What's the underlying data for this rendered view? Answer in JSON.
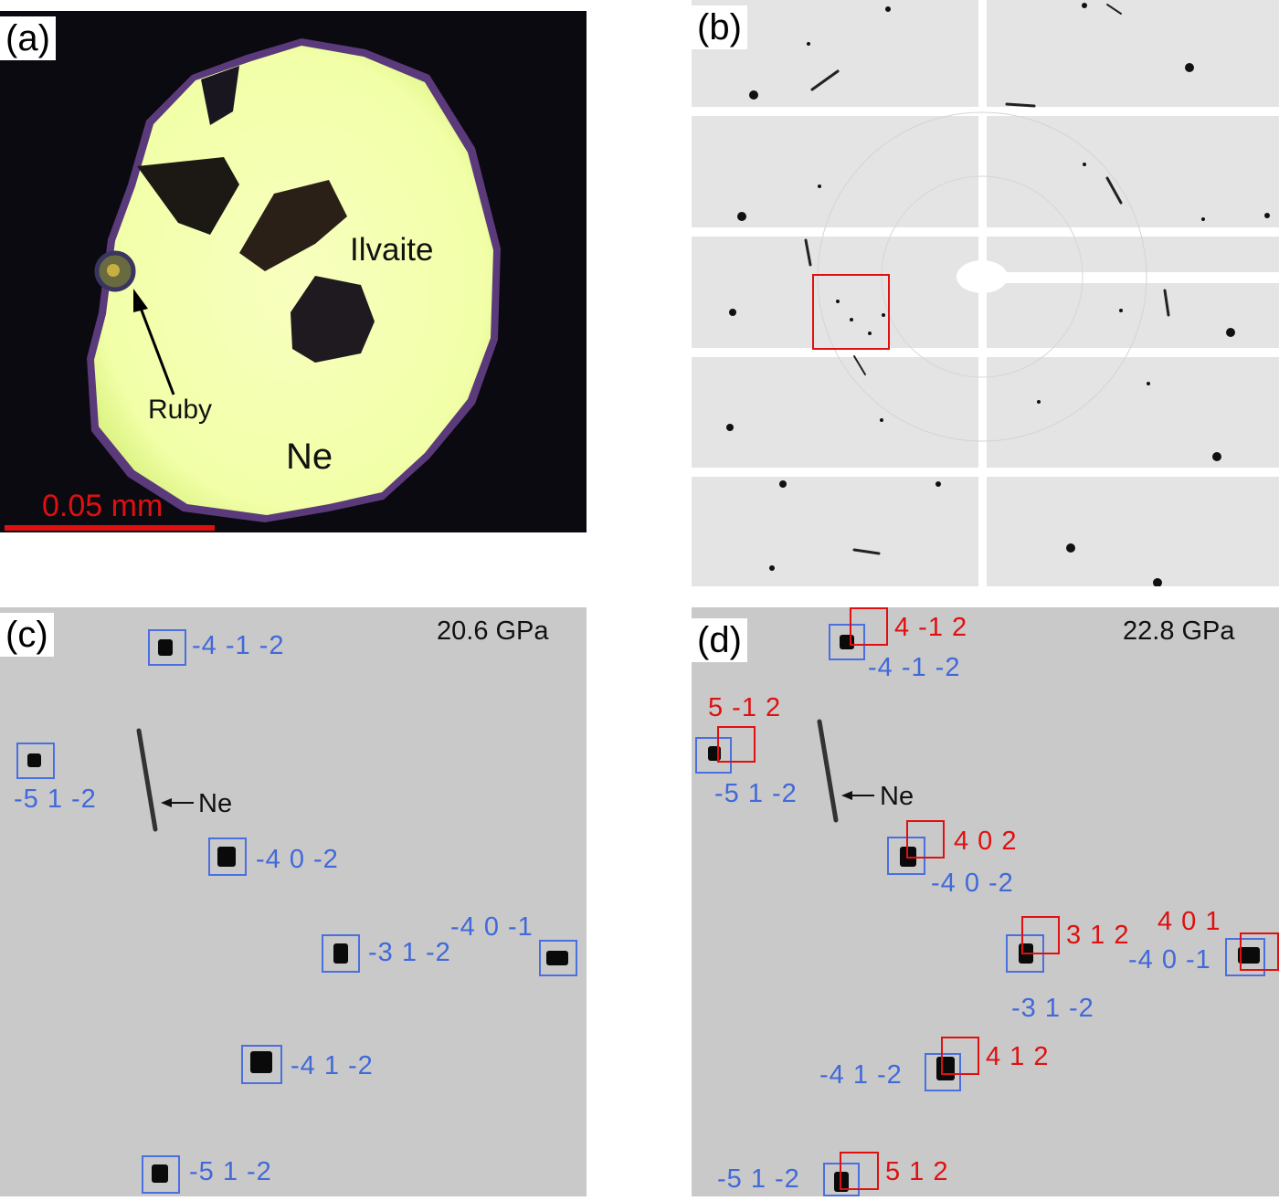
{
  "panels": {
    "a": {
      "label": "(a)",
      "ilvaite": "Ilvaite",
      "ruby": "Ruby",
      "ne": "Ne",
      "scale_bar": "0.05 mm"
    },
    "b": {
      "label": "(b)"
    },
    "c": {
      "label": "(c)",
      "pressure": "20.6 GPa",
      "ne_label": "Ne",
      "reflections_blue": [
        "-4 -1 -2",
        "-5 1 -2",
        "-4 0 -2",
        "-4 0 -1",
        "-3 1 -2",
        "-4 1 -2",
        "-5 1 -2"
      ]
    },
    "d": {
      "label": "(d)",
      "pressure": "22.8 GPa",
      "ne_label": "Ne",
      "reflections_blue": [
        "-4 -1 -2",
        "-5 1 -2",
        "-4 0 -2",
        "-3 1 -2",
        "-4 0 -1",
        "-4 1 -2",
        "-5 1 -2"
      ],
      "reflections_red": [
        "4 -1 2",
        "5 -1 2",
        "4 0 2",
        "3 1 2",
        "4 0 1",
        "4 1 2",
        "5 1 2"
      ]
    }
  },
  "colors": {
    "blue_reflection": "#4169d9",
    "red_reflection": "#e01010",
    "sample_glow": "#f4ffb0",
    "scale_bar": "#e01010"
  }
}
